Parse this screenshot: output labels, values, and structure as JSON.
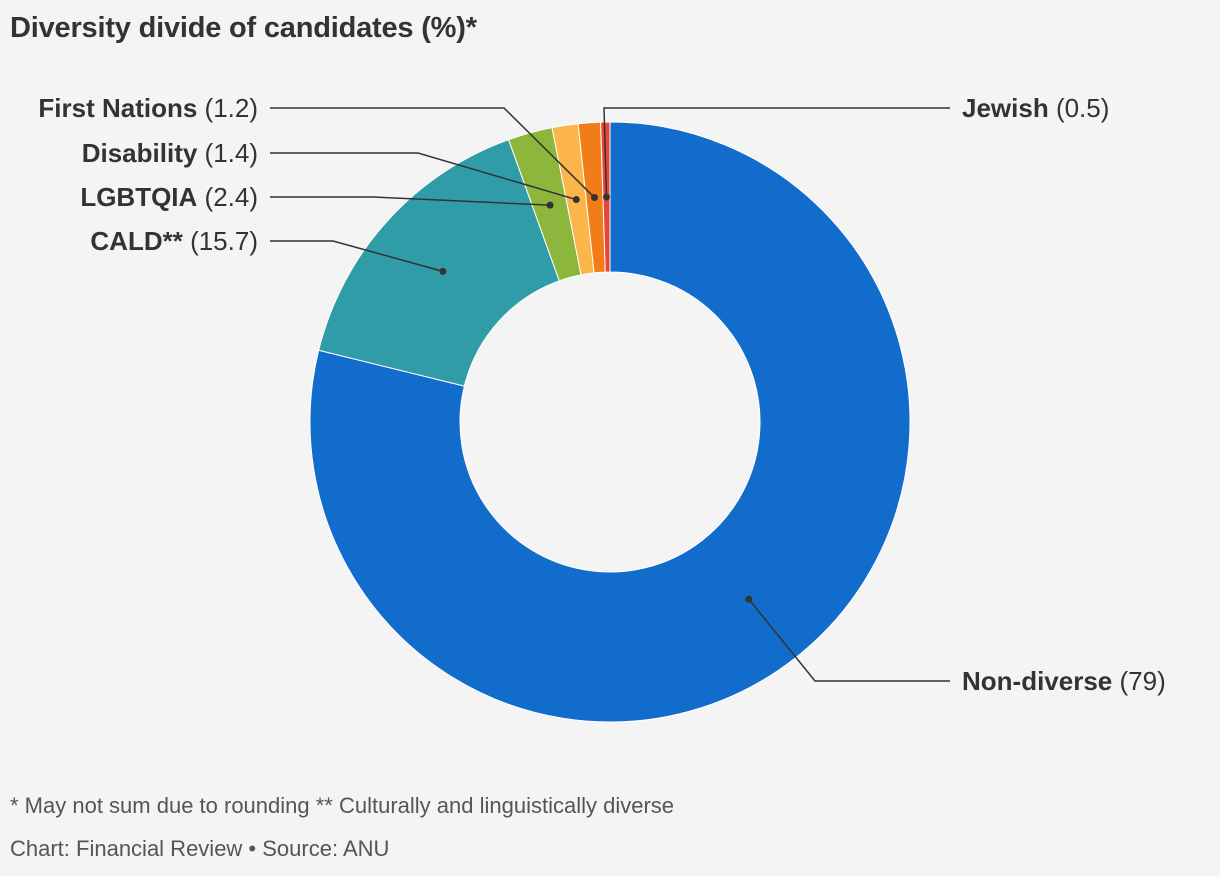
{
  "chart_data": {
    "type": "pie",
    "variant": "donut",
    "title": "Diversity divide of candidates (%)*",
    "slices": [
      {
        "label": "Non-diverse",
        "value": 79,
        "value_text": "(79)",
        "color": "#116ccc"
      },
      {
        "label": "CALD**",
        "value": 15.7,
        "value_text": "(15.7)",
        "color": "#309ca8"
      },
      {
        "label": "LGBTQIA",
        "value": 2.4,
        "value_text": "(2.4)",
        "color": "#8cb63c"
      },
      {
        "label": "Disability",
        "value": 1.4,
        "value_text": "(1.4)",
        "color": "#fbb54a"
      },
      {
        "label": "First Nations",
        "value": 1.2,
        "value_text": "(1.2)",
        "color": "#f27c17"
      },
      {
        "label": "Jewish",
        "value": 0.5,
        "value_text": "(0.5)",
        "color": "#e8453c"
      }
    ],
    "footnote": "* May not sum due to rounding ** Culturally and linguistically diverse",
    "credit": "Chart: Financial Review • Source: ANU"
  }
}
